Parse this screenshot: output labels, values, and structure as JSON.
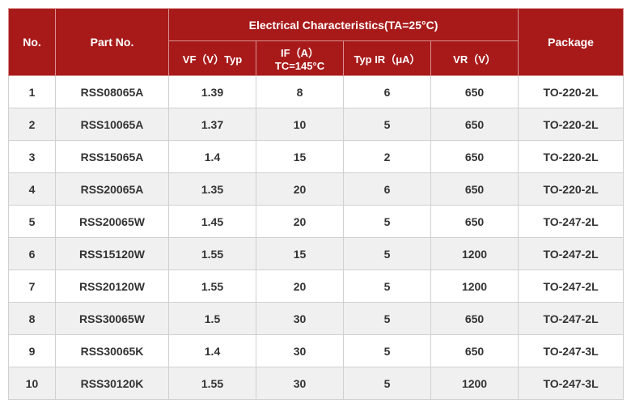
{
  "table": {
    "type": "table",
    "header_bg": "#a81a1a",
    "header_fg": "#ffffff",
    "row_bg_odd": "#ffffff",
    "row_bg_even": "#f0f0f0",
    "border_color": "#d0d0d0",
    "font_family": "Arial, sans-serif",
    "font_size_header": 14,
    "font_size_cell": 14,
    "headers": {
      "no": "No.",
      "part": "Part No.",
      "group": "Electrical  Characteristics(TA=25°C)",
      "vf": "VF（V）Typ",
      "if": "IF（A）\nTC=145°C",
      "ir": "Typ IR（μA）",
      "vr": "VR（V）",
      "pkg": "Package"
    },
    "rows": [
      {
        "no": "1",
        "part": "RSS08065A",
        "vf": "1.39",
        "if": "8",
        "ir": "6",
        "vr": "650",
        "pkg": "TO-220-2L"
      },
      {
        "no": "2",
        "part": "RSS10065A",
        "vf": "1.37",
        "if": "10",
        "ir": "5",
        "vr": "650",
        "pkg": "TO-220-2L"
      },
      {
        "no": "3",
        "part": "RSS15065A",
        "vf": "1.4",
        "if": "15",
        "ir": "2",
        "vr": "650",
        "pkg": "TO-220-2L"
      },
      {
        "no": "4",
        "part": "RSS20065A",
        "vf": "1.35",
        "if": "20",
        "ir": "6",
        "vr": "650",
        "pkg": "TO-220-2L"
      },
      {
        "no": "5",
        "part": "RSS20065W",
        "vf": "1.45",
        "if": "20",
        "ir": "5",
        "vr": "650",
        "pkg": "TO-247-2L"
      },
      {
        "no": "6",
        "part": "RSS15120W",
        "vf": "1.55",
        "if": "15",
        "ir": "5",
        "vr": "1200",
        "pkg": "TO-247-2L"
      },
      {
        "no": "7",
        "part": "RSS20120W",
        "vf": "1.55",
        "if": "20",
        "ir": "5",
        "vr": "1200",
        "pkg": "TO-247-2L"
      },
      {
        "no": "8",
        "part": "RSS30065W",
        "vf": "1.5",
        "if": "30",
        "ir": "5",
        "vr": "650",
        "pkg": "TO-247-2L"
      },
      {
        "no": "9",
        "part": "RSS30065K",
        "vf": "1.4",
        "if": "30",
        "ir": "5",
        "vr": "650",
        "pkg": "TO-247-3L"
      },
      {
        "no": "10",
        "part": "RSS30120K",
        "vf": "1.55",
        "if": "30",
        "ir": "5",
        "vr": "1200",
        "pkg": "TO-247-3L"
      }
    ]
  }
}
